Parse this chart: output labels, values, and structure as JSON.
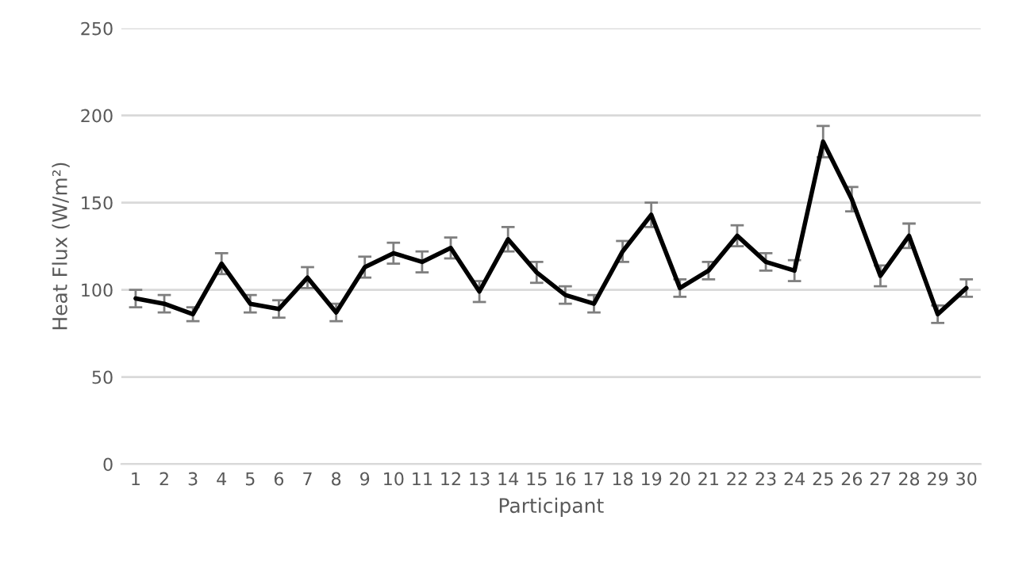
{
  "chart_data": {
    "type": "line",
    "xlabel": "Participant",
    "ylabel": "Heat Flux (W/m²)",
    "categories": [
      "1",
      "2",
      "3",
      "4",
      "5",
      "6",
      "7",
      "8",
      "9",
      "10",
      "11",
      "12",
      "13",
      "14",
      "15",
      "16",
      "17",
      "18",
      "19",
      "20",
      "21",
      "22",
      "23",
      "24",
      "25",
      "26",
      "27",
      "28",
      "29",
      "30"
    ],
    "series": [
      {
        "color": "#000000",
        "values": [
          95,
          92,
          86,
          115,
          92,
          89,
          107,
          87,
          113,
          121,
          116,
          124,
          99,
          129,
          110,
          97,
          92,
          122,
          143,
          101,
          111,
          131,
          116,
          111,
          185,
          152,
          108,
          131,
          86,
          101
        ],
        "errors": [
          5,
          5,
          4,
          6,
          5,
          5,
          6,
          5,
          6,
          6,
          6,
          6,
          6,
          7,
          6,
          5,
          5,
          6,
          7,
          5,
          5,
          6,
          5,
          6,
          9,
          7,
          6,
          7,
          5,
          5
        ]
      }
    ],
    "ylim": [
      0,
      250
    ],
    "yticks": [
      0,
      50,
      100,
      150,
      200,
      250
    ],
    "grid": "y",
    "marker": "none",
    "line_style": "solid"
  }
}
